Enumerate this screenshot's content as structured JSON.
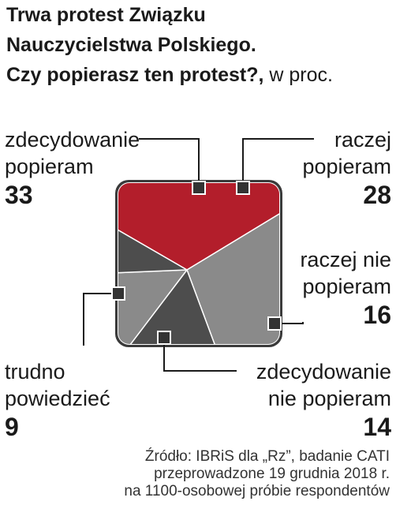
{
  "title_lines": [
    "Trwa protest Związku",
    "Nauczycielstwa Polskiego.",
    "Czy popierasz ten protest?,"
  ],
  "unit": "w proc.",
  "chart_data": {
    "type": "pie",
    "slices": [
      {
        "label_lines": [
          "zdecydowanie",
          "popieram"
        ],
        "value": 33,
        "color": "#b31e2b"
      },
      {
        "label_lines": [
          "raczej",
          "popieram"
        ],
        "value": 28,
        "color": "#8a8a8a"
      },
      {
        "label_lines": [
          "raczej nie",
          "popieram"
        ],
        "value": 16,
        "color": "#4d4d4d"
      },
      {
        "label_lines": [
          "zdecydowanie",
          "nie popieram"
        ],
        "value": 14,
        "color": "#8a8a8a"
      },
      {
        "label_lines": [
          "trudno",
          "powiedzieć"
        ],
        "value": 9,
        "color": "#4d4d4d"
      }
    ]
  },
  "source_lines": [
    "Źródło: IBRiS dla „Rz”, badanie CATI",
    "przeprowadzone 19 grudnia 2018 r.",
    "na 1100-osobowej próbie respondentów"
  ]
}
